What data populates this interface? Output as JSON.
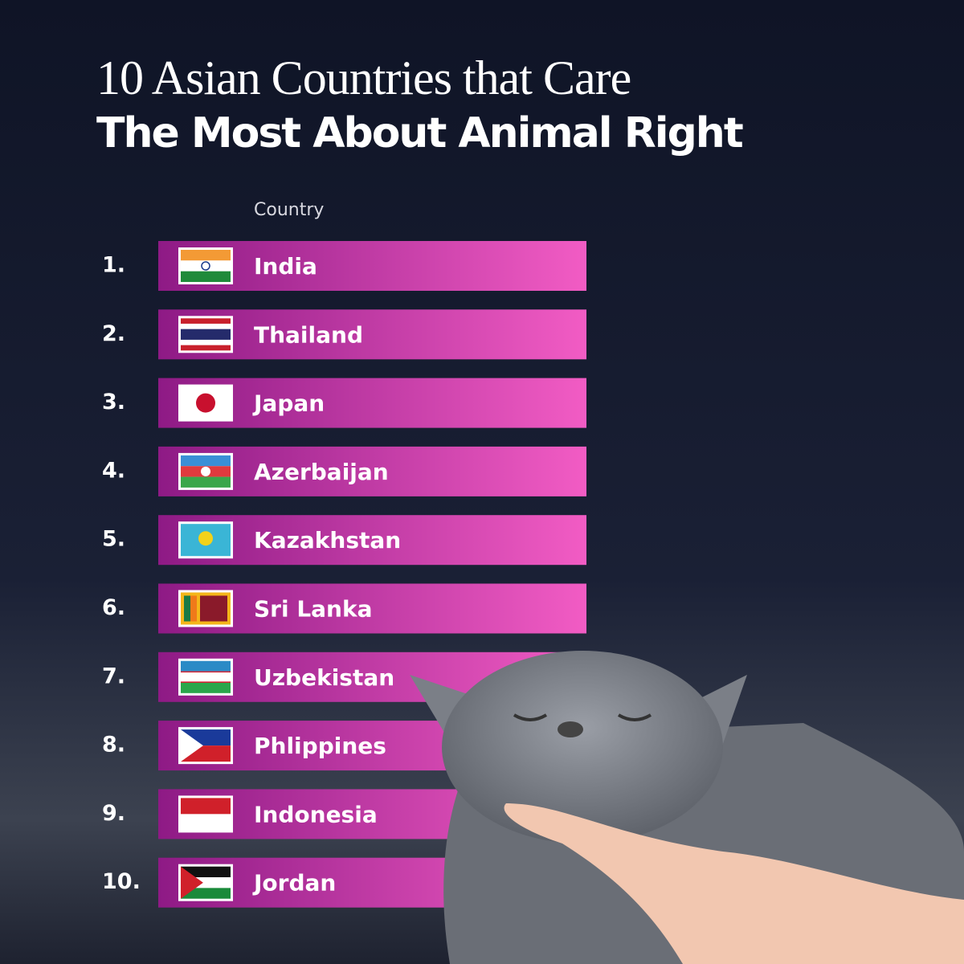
{
  "header": {
    "title": [
      "10 Asian Countries that Care",
      "The Most About Animal Right"
    ],
    "column_header": "Country"
  },
  "rows": [
    {
      "rank": "1.",
      "country": "India"
    },
    {
      "rank": "2.",
      "country": "Thailand"
    },
    {
      "rank": "3.",
      "country": "Japan"
    },
    {
      "rank": "4.",
      "country": "Azerbaijan"
    },
    {
      "rank": "5.",
      "country": "Kazakhstan"
    },
    {
      "rank": "6.",
      "country": "Sri Lanka"
    },
    {
      "rank": "7.",
      "country": "Uzbekistan"
    },
    {
      "rank": "8.",
      "country": "Phlippines"
    },
    {
      "rank": "9.",
      "country": "Indonesia"
    },
    {
      "rank": "10.",
      "country": "Jordan"
    }
  ]
}
